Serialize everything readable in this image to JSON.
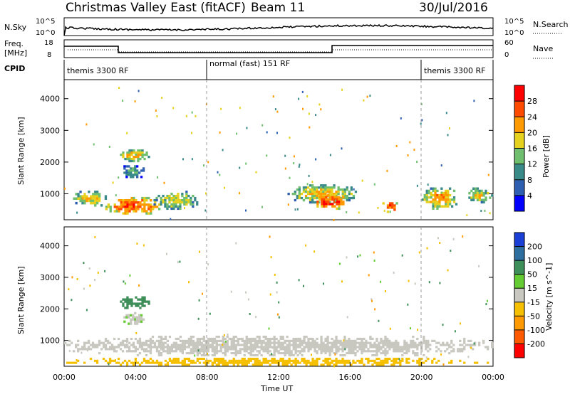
{
  "header": {
    "station": "Christmas Valley East (fitACF)",
    "beam": "Beam 11",
    "date": "30/Jul/2016"
  },
  "strip_nsky": {
    "left_label": "N.Sky",
    "left_ticks": [
      "10^5",
      "10^0"
    ],
    "right_ticks": [
      "10^5",
      "10^0"
    ],
    "right_label": "N.Search"
  },
  "strip_freq": {
    "left_label_1": "Freq.",
    "left_label_2": "[MHz]",
    "left_ticks": [
      "18",
      "8"
    ],
    "right_ticks": [
      "60",
      "0"
    ],
    "right_label": "Nave"
  },
  "cpid": {
    "label": "CPID",
    "segments": [
      {
        "name": "themis 3300 RF",
        "start": 0,
        "end": 8
      },
      {
        "name": "normal (fast) 151 RF",
        "start": 8,
        "end": 20
      },
      {
        "name": "themis 3300 RF",
        "start": 20,
        "end": 24
      }
    ]
  },
  "chart_data": [
    {
      "type": "heatmap",
      "parameter": "Power",
      "ylabel": "Slant Range [km]",
      "xlabel": "Time UT",
      "xlim": [
        0,
        24
      ],
      "ylim": [
        180,
        4600
      ],
      "yticks": [
        1000,
        2000,
        3000,
        4000
      ],
      "colorbar_label": "Power [dB]",
      "colorbar_ticks": [
        "4",
        "8",
        "12",
        "16",
        "20",
        "24",
        "28"
      ],
      "colorbar_colors": [
        "#0000ff",
        "#2f5fb0",
        "#3b8a8a",
        "#6fbf6f",
        "#e6d21e",
        "#ff9a00",
        "#ff4b00",
        "#ff0000"
      ],
      "regions": [
        {
          "t0": 0.5,
          "t1": 2.5,
          "r0": 600,
          "r1": 1100,
          "level": 20
        },
        {
          "t0": 2.3,
          "t1": 5.5,
          "r0": 350,
          "r1": 900,
          "level": 26
        },
        {
          "t0": 5.0,
          "t1": 7.5,
          "r0": 500,
          "r1": 1100,
          "level": 18
        },
        {
          "t0": 3.0,
          "t1": 4.8,
          "r0": 2000,
          "r1": 2400,
          "level": 20
        },
        {
          "t0": 3.2,
          "t1": 4.5,
          "r0": 1500,
          "r1": 1900,
          "level": 14
        },
        {
          "t0": 12.5,
          "t1": 16.5,
          "r0": 700,
          "r1": 1300,
          "level": 20
        },
        {
          "t0": 14.0,
          "t1": 15.8,
          "r0": 500,
          "r1": 1000,
          "level": 28
        },
        {
          "t0": 17.8,
          "t1": 18.8,
          "r0": 400,
          "r1": 800,
          "level": 26
        },
        {
          "t0": 20.0,
          "t1": 22.0,
          "r0": 500,
          "r1": 1200,
          "level": 22
        },
        {
          "t0": 22.5,
          "t1": 24,
          "r0": 700,
          "r1": 1200,
          "level": 18
        }
      ]
    },
    {
      "type": "heatmap",
      "parameter": "Velocity",
      "ylabel": "Slant Range [km]",
      "xlabel": "Time UT",
      "xlim": [
        0,
        24
      ],
      "ylim": [
        180,
        4600
      ],
      "yticks": [
        1000,
        2000,
        3000,
        4000
      ],
      "colorbar_label": "Velocity [m s^-1]",
      "colorbar_ticks": [
        "200",
        "100",
        "50",
        "15",
        "-15",
        "-50",
        "-100",
        "-200"
      ],
      "colorbar_colors": [
        "#1a3fd6",
        "#2f6fa0",
        "#3f8f5a",
        "#66cc33",
        "#c8c8c0",
        "#f5c000",
        "#ff9a00",
        "#ff5a00",
        "#ff0000"
      ],
      "regions": [
        {
          "t0": 0.0,
          "t1": 24,
          "r0": 500,
          "r1": 1150,
          "level": 0
        },
        {
          "t0": 3.0,
          "t1": 4.8,
          "r0": 2000,
          "r1": 2400,
          "level": 60
        },
        {
          "t0": 3.2,
          "t1": 4.5,
          "r0": 1500,
          "r1": 1900,
          "level": 10
        },
        {
          "t0": 0.0,
          "t1": 24,
          "r0": 200,
          "r1": 450,
          "level": -30
        }
      ]
    }
  ],
  "time_axis": {
    "ticks": [
      "00:00",
      "04:00",
      "08:00",
      "12:00",
      "16:00",
      "20:00",
      "00:00"
    ],
    "label": "Time UT"
  }
}
